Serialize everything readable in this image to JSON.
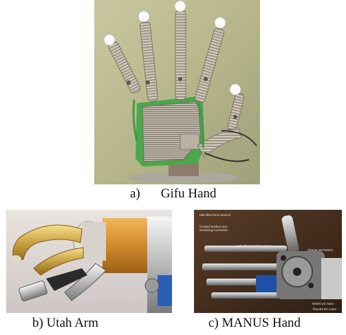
{
  "figure": {
    "panels": [
      {
        "id": "a",
        "prefix": "a)",
        "caption": "Gifu Hand"
      },
      {
        "id": "b",
        "caption": "b) Utah Arm"
      },
      {
        "id": "c",
        "caption": "c) MANUS Hand"
      }
    ],
    "manus_annotations": [
      "Hall-effect force sensors",
      "Crossed tendons and",
      "tensioning mechanism",
      "Hall-effect position sensors",
      "Closure mechanism",
      "Wrist's US motor",
      "Thumb's DC motor"
    ],
    "colors": {
      "gifu_background": "#b9b88c",
      "gifu_green_trim": "#4caf50",
      "utah_gold": "#c8a043",
      "utah_copper": "#d08a2b",
      "manus_background": "#4a3220",
      "manus_blue": "#1f4fa8"
    }
  }
}
